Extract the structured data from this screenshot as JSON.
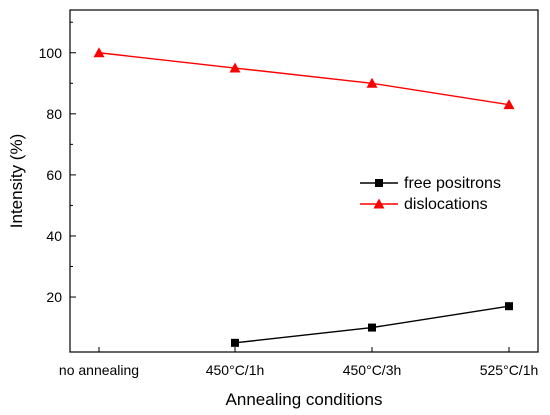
{
  "chart_data": {
    "type": "line",
    "categories": [
      "no annealing",
      "450°C/1h",
      "450°C/3h",
      "525°C/1h"
    ],
    "series": [
      {
        "name": "free positrons",
        "values": [
          null,
          5,
          10,
          17
        ],
        "color": "#000000",
        "marker": "square"
      },
      {
        "name": "dislocations",
        "values": [
          100,
          95,
          90,
          83
        ],
        "color": "#ff0000",
        "marker": "triangle"
      }
    ],
    "xlabel": "Annealing conditions",
    "ylabel": "Intensity (%)",
    "ylim": [
      2,
      114
    ],
    "yticks": [
      20,
      40,
      60,
      80,
      100
    ],
    "grid": false,
    "legend_position": "right-middle"
  }
}
